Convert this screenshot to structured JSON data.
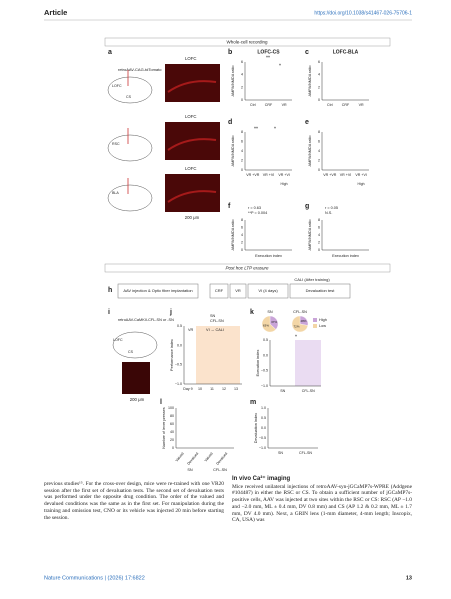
{
  "header": {
    "article": "Article",
    "url": "https://doi.org/10.1038/s41467-026-75706-1"
  },
  "figure": {
    "section1": "Whole-cell recording",
    "section2": "Post hoc LTP erasure",
    "letters": {
      "a": "a",
      "b": "b",
      "c": "c",
      "d": "d",
      "e": "e",
      "f": "f",
      "g": "g",
      "h": "h",
      "i": "i",
      "j": "j",
      "k": "k",
      "l": "l",
      "m": "m"
    },
    "a": {
      "virus": "retroAAV-CAG-tdTomato",
      "regions": [
        "LOFC",
        "CS",
        "RSC",
        "BLA"
      ],
      "image_labels": [
        "LOFC",
        "LOFC",
        "LOFC"
      ],
      "scale": "200 μm"
    },
    "b": {
      "title": "LOFC-CS",
      "ylabel": "AMPA/NMDA ratio",
      "yticks": [
        "6",
        "4",
        "2",
        "0"
      ],
      "xlabels": [
        "Ctrl",
        "CRF",
        "VR"
      ],
      "sig": [
        "**",
        "*"
      ]
    },
    "c": {
      "title": "LOFC-BLA",
      "ylabel": "AMPA/NMDA ratio",
      "yticks": [
        "6",
        "4",
        "2",
        "0"
      ],
      "xlabels": [
        "Ctrl",
        "CRF",
        "VR"
      ]
    },
    "d": {
      "ylabel": "AMPA/NMDA ratio",
      "yticks": [
        "8",
        "6",
        "4",
        "2",
        "0"
      ],
      "xlabels": [
        "VR +VR",
        "VR +VI",
        "VR +VI"
      ],
      "note": "High",
      "sig": [
        "**",
        "*"
      ]
    },
    "e": {
      "ylabel": "AMPA/NMDA ratio",
      "yticks": [
        "8",
        "6",
        "4",
        "2",
        "0"
      ],
      "xlabels": [
        "VR +VR",
        "VR +VI",
        "VR +VI"
      ],
      "note": "High"
    },
    "f": {
      "stats": [
        "r = 0.63",
        "**P = 0.004"
      ],
      "ylabel": "AMPA/NMDA ratio",
      "yticks": [
        "8",
        "6",
        "4",
        "2",
        "0"
      ],
      "xlabel": "Execution index"
    },
    "g": {
      "stats": [
        "r = 0.05",
        "N.S."
      ],
      "ylabel": "AMPA/NMDA ratio",
      "yticks": [
        "8",
        "6",
        "4",
        "2",
        "0"
      ],
      "xlabel": "Execution index"
    },
    "h": {
      "cali": "CALI (After training)",
      "steps": [
        "AAV injection & Optic fiber implantation",
        "CRF",
        "VR",
        "VI (4 days)",
        "Devaluation test"
      ]
    },
    "i": {
      "virus": "retroAAV-CaMKII-CFL-SN or -SN",
      "regions": [
        "LOFC",
        "CS"
      ],
      "scale": "200 μm"
    },
    "j": {
      "legend": [
        "SN",
        "CFL-SN"
      ],
      "phases": [
        "VR",
        "VI → CALI"
      ],
      "ylabel": "Performance index",
      "yticks": [
        "0.5",
        "0.0",
        "−0.5",
        "−1.0"
      ],
      "xticks": [
        "Day 9",
        "10",
        "11",
        "12",
        "13"
      ]
    },
    "k": {
      "pies": [
        {
          "name": "SN",
          "values": [
            37,
            63
          ],
          "value_labels": [
            "37%",
            "63%"
          ]
        },
        {
          "name": "CFL-SN",
          "values": [
            28,
            72
          ],
          "value_labels": [
            "28%",
            "72%"
          ]
        }
      ],
      "colors": [
        "#c9a4d8",
        "#f3d6a6"
      ],
      "legend": [
        "High",
        "Low"
      ],
      "ylabel": "Execution index",
      "yticks": [
        "0.5",
        "0.0",
        "−0.5",
        "−1.0"
      ],
      "xlabels": [
        "SN",
        "CFL-SN"
      ],
      "sig": "*"
    },
    "l": {
      "ylabel": "Number of lever presses",
      "yticks": [
        "100",
        "80",
        "60",
        "40",
        "20",
        "0"
      ],
      "xlabels": [
        "Valued",
        "Devalued",
        "Valued",
        "Devalued"
      ],
      "groups": [
        "SN",
        "CFL-SN"
      ]
    },
    "m": {
      "ylabel": "Devaluation Index",
      "yticks": [
        "1.0",
        "0.5",
        "0.0",
        "−0.5",
        "−1.0"
      ],
      "xlabels": [
        "SN",
        "CFL-SN"
      ]
    }
  },
  "body": {
    "left": "previous studies¹⁵. For the cross-over design, mice were re-trained with one VR20 session after the first set of devaluation tests. The second set of devaluation tests was performed under the opposite drug condition. The order of the valued and devalued conditions was the same as in the first set. For manipulation during the training and omission test, CNO or its vehicle was injected 20 min before starting the session.",
    "heading": "In vivo Ca²⁺ imaging",
    "right": "Mice received unilateral injections of retroAAV-syn-jGCaMP7s-WPRE (Addgene #104487) in either the RSC or CS. To obtain a sufficient number of jGCaMP7s-positive cells, AAV was injected at two sites within the RSC or CS: RSC (AP −1.0 and −2.0 mm, ML ± 0.4 mm, DV 0.8 mm) and CS (AP 1.2 & 0.2 mm, ML ± 1.7 mm, DV 4.0 mm). Next, a GRIN lens (1-mm diameter, 4-mm length; Inscopix, CA, USA) was"
  },
  "footer": {
    "journal": "Nature Communications | (2026) 17:6822",
    "page": "13"
  }
}
